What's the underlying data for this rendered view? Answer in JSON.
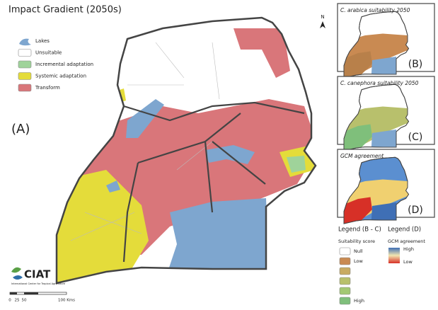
{
  "title": "Impact Gradient (2050s)",
  "panel_label": "(A)",
  "north": "N",
  "legend": [
    {
      "label": "Lakes",
      "color": "#7ea6cf"
    },
    {
      "label": "Unsuitable",
      "color": "#ffffff"
    },
    {
      "label": "Incremental adaptation",
      "color": "#9fd39a"
    },
    {
      "label": "Systemic adaptation",
      "color": "#e4dc3a"
    },
    {
      "label": "Transform",
      "color": "#d9767a"
    }
  ],
  "insets": [
    {
      "title": "C. arabica suitability 2050",
      "label": "(B)"
    },
    {
      "title": "C. canephora suitability 2050",
      "label": "(C)"
    },
    {
      "title": "GCM agreement",
      "label": "(D)"
    }
  ],
  "legend_bc": {
    "title": "Legend (B - C)",
    "subtitle": "Suitability score",
    "items": [
      {
        "label": "Null",
        "color": "#ffffff"
      },
      {
        "label": "Low",
        "color": "#c98a52"
      },
      {
        "label": null,
        "color": "#c8ab62"
      },
      {
        "label": null,
        "color": "#b8c06c"
      },
      {
        "label": null,
        "color": "#a3c873"
      },
      {
        "label": "High",
        "color": "#7fbf7b"
      }
    ]
  },
  "legend_d": {
    "title": "Legend (D)",
    "subtitle": "GCM agreement",
    "high": "High",
    "low": "Low"
  },
  "scale_bar": {
    "ticks": [
      "0",
      "25",
      "50",
      "100 Kms"
    ]
  },
  "logo": {
    "name": "CIAT",
    "tagline": "International Center for Tropical Agriculture"
  }
}
